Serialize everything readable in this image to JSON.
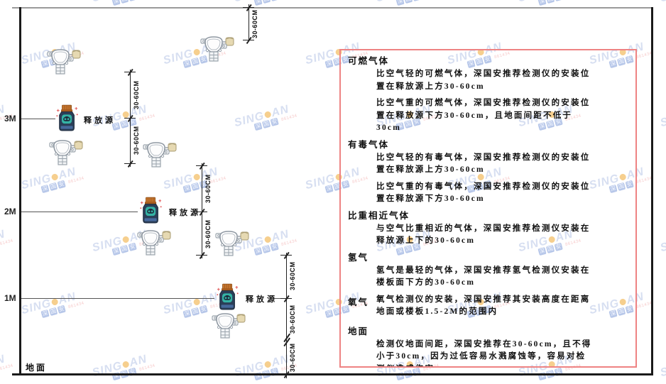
{
  "watermark": {
    "brand_left": "SING",
    "brand_right": "AN",
    "squares": [
      "深",
      "国",
      "安"
    ],
    "subtext": "861434"
  },
  "diagram": {
    "height_labels": {
      "h3": "3M",
      "h2": "2M",
      "h1": "1M"
    },
    "ground_label": "地面",
    "source_label": "释放源",
    "dim_label": "30-60CM"
  },
  "panel": {
    "sections": [
      {
        "title": "可燃气体",
        "paragraphs": [
          "比空气轻的可燃气体，深国安推荐检测仪的安装位置在释放源上方30-60cm",
          "比空气重的可燃气体，深国安推荐检测仪的安装位置在释放源下方30-60cm，且地面间距不低于30cm"
        ]
      },
      {
        "title": "有毒气体",
        "paragraphs": [
          "比空气轻的有毒气体，深国安推荐检测仪的安装位置在释放源上方30-60cm",
          "比空气重的有毒气体，深国安推荐检测仪的安装位置在释放源下方30-60cm"
        ]
      },
      {
        "title": "比重相近气体",
        "paragraphs": [
          "与空气比重相近的气体，深国安推荐检测仪安装在释放源上下的30-60cm"
        ]
      },
      {
        "title": "氢气",
        "paragraphs": [
          "氢气是最轻的气体，深国安推荐氢气检测仪安装在楼板面下方的30-60cm"
        ]
      },
      {
        "title": "氧气",
        "inline": true,
        "paragraphs": [
          "氧气检测仪的安装，深国安推荐其安装高度在距离地面或楼板1.5-2M的范围内"
        ]
      },
      {
        "title": "地面",
        "paragraphs": [
          "检测仪地面间距，深国安推荐在30-60cm，且不得小于30cm，因为过低容易水溅腐蚀等，容易对检测仪造成伤害"
        ]
      }
    ]
  }
}
